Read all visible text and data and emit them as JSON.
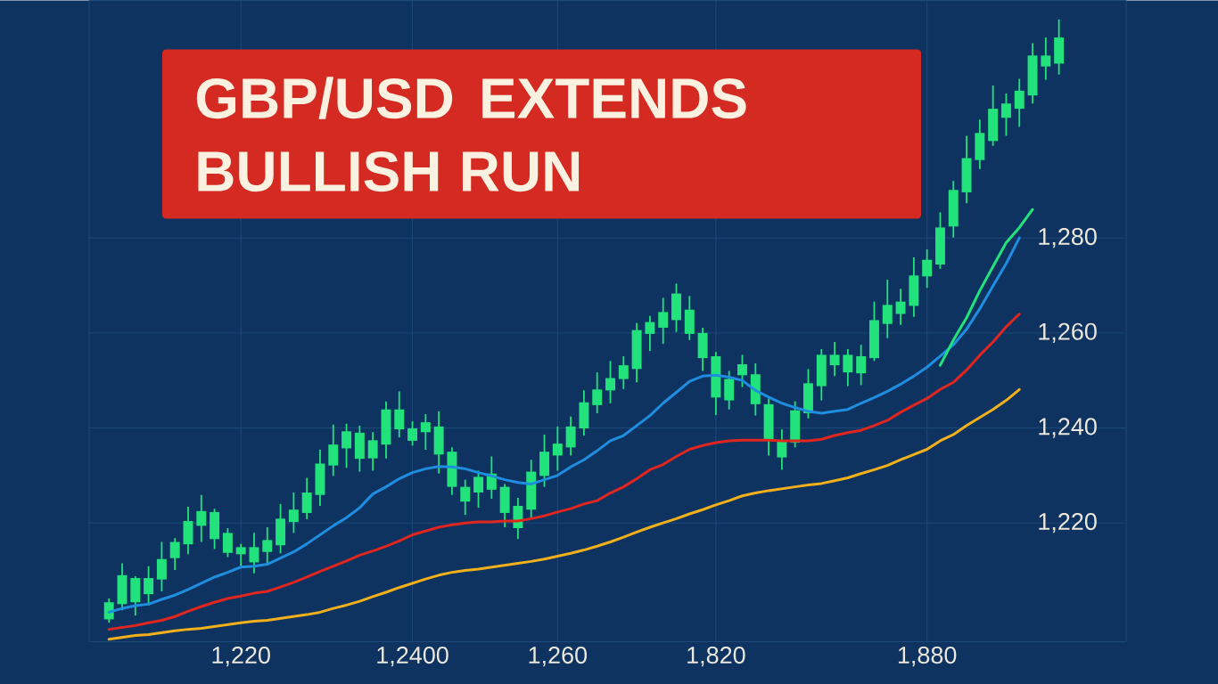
{
  "chart_data": {
    "type": "candlestick",
    "title": "GBP/USD EXTENDS BULLISH RUN",
    "categories": [
      null,
      null,
      null,
      null,
      null,
      null,
      null,
      null,
      null,
      null,
      "1,220",
      null,
      null,
      null,
      null,
      null,
      null,
      null,
      null,
      null,
      null,
      null,
      null,
      "1,2400",
      null,
      null,
      null,
      null,
      null,
      null,
      null,
      null,
      null,
      null,
      "1,260",
      null,
      null,
      null,
      null,
      null,
      null,
      null,
      null,
      null,
      null,
      null,
      "1,820",
      null,
      null,
      null,
      null,
      null,
      null,
      null,
      null,
      null,
      null,
      null,
      null,
      null,
      null,
      null,
      "1,880",
      null,
      null,
      null,
      null,
      null,
      null,
      null,
      null,
      null,
      null
    ],
    "color": "#22e27c",
    "ohlc": [
      [
        1199.7,
        1204.1,
        1199.0,
        1203.3
      ],
      [
        1202.9,
        1211.5,
        1201.6,
        1209.0
      ],
      [
        1203.3,
        1208.8,
        1200.5,
        1208.4
      ],
      [
        1205.0,
        1210.9,
        1202.6,
        1208.4
      ],
      [
        1208.1,
        1216.0,
        1205.6,
        1212.4
      ],
      [
        1212.6,
        1216.8,
        1210.1,
        1216.0
      ],
      [
        1215.5,
        1223.4,
        1213.4,
        1220.4
      ],
      [
        1219.4,
        1225.9,
        1216.0,
        1222.5
      ],
      [
        1216.6,
        1223.0,
        1214.5,
        1222.3
      ],
      [
        1213.7,
        1218.9,
        1212.8,
        1217.9
      ],
      [
        1213.4,
        1215.6,
        1210.9,
        1214.9
      ],
      [
        1211.7,
        1217.9,
        1209.4,
        1214.9
      ],
      [
        1213.9,
        1219.1,
        1211.5,
        1216.4
      ],
      [
        1215.3,
        1224.0,
        1213.6,
        1220.9
      ],
      [
        1220.2,
        1226.4,
        1217.9,
        1222.8
      ],
      [
        1222.1,
        1229.5,
        1220.8,
        1226.4
      ],
      [
        1225.9,
        1235.4,
        1223.6,
        1232.5
      ],
      [
        1232.1,
        1240.7,
        1229.9,
        1236.5
      ],
      [
        1235.7,
        1240.9,
        1231.6,
        1239.3
      ],
      [
        1233.5,
        1240.5,
        1230.8,
        1239.0
      ],
      [
        1233.6,
        1239.1,
        1231.0,
        1237.4
      ],
      [
        1236.5,
        1245.6,
        1233.6,
        1243.9
      ],
      [
        1239.7,
        1247.7,
        1238.0,
        1243.9
      ],
      [
        1237.3,
        1241.4,
        1236.3,
        1239.9
      ],
      [
        1239.1,
        1242.9,
        1235.4,
        1241.2
      ],
      [
        1234.4,
        1243.5,
        1230.4,
        1240.3
      ],
      [
        1227.6,
        1235.9,
        1225.9,
        1235.0
      ],
      [
        1224.5,
        1229.1,
        1221.7,
        1227.6
      ],
      [
        1226.4,
        1231.0,
        1223.2,
        1229.7
      ],
      [
        1227.0,
        1234.0,
        1225.1,
        1230.4
      ],
      [
        1222.1,
        1228.2,
        1219.1,
        1227.6
      ],
      [
        1218.9,
        1225.3,
        1216.6,
        1223.6
      ],
      [
        1222.8,
        1233.3,
        1220.8,
        1230.8
      ],
      [
        1229.9,
        1238.6,
        1227.6,
        1235.0
      ],
      [
        1234.2,
        1240.3,
        1231.0,
        1236.7
      ],
      [
        1235.9,
        1242.4,
        1234.2,
        1240.3
      ],
      [
        1239.9,
        1247.9,
        1238.4,
        1245.4
      ],
      [
        1244.8,
        1251.7,
        1243.1,
        1248.1
      ],
      [
        1247.9,
        1254.1,
        1245.2,
        1250.5
      ],
      [
        1250.3,
        1255.1,
        1248.2,
        1253.2
      ],
      [
        1252.4,
        1262.1,
        1249.6,
        1260.6
      ],
      [
        1259.8,
        1263.6,
        1256.2,
        1262.3
      ],
      [
        1261.1,
        1267.4,
        1257.7,
        1264.4
      ],
      [
        1262.7,
        1270.4,
        1260.2,
        1268.3
      ],
      [
        1259.8,
        1267.8,
        1258.5,
        1264.9
      ],
      [
        1254.7,
        1261.1,
        1252.0,
        1260.0
      ],
      [
        1246.4,
        1256.0,
        1242.7,
        1255.1
      ],
      [
        1245.8,
        1252.0,
        1243.9,
        1250.3
      ],
      [
        1251.1,
        1255.4,
        1248.6,
        1253.4
      ],
      [
        1245.0,
        1253.6,
        1242.6,
        1251.3
      ],
      [
        1237.3,
        1246.2,
        1234.2,
        1245.0
      ],
      [
        1233.8,
        1239.7,
        1231.2,
        1237.4
      ],
      [
        1236.9,
        1245.6,
        1235.9,
        1243.7
      ],
      [
        1243.1,
        1252.4,
        1242.0,
        1249.4
      ],
      [
        1248.8,
        1256.6,
        1245.8,
        1255.4
      ],
      [
        1253.2,
        1258.1,
        1250.9,
        1255.4
      ],
      [
        1251.7,
        1256.6,
        1248.8,
        1255.4
      ],
      [
        1251.5,
        1257.5,
        1249.0,
        1255.1
      ],
      [
        1254.7,
        1266.6,
        1254.1,
        1262.7
      ],
      [
        1261.9,
        1271.2,
        1258.9,
        1265.9
      ],
      [
        1264.0,
        1269.3,
        1261.7,
        1266.6
      ],
      [
        1265.7,
        1275.9,
        1263.4,
        1272.1
      ],
      [
        1271.9,
        1277.6,
        1269.5,
        1275.4
      ],
      [
        1274.4,
        1285.4,
        1273.5,
        1282.2
      ],
      [
        1282.4,
        1292.0,
        1280.1,
        1290.1
      ],
      [
        1289.6,
        1301.5,
        1287.3,
        1296.8
      ],
      [
        1296.4,
        1304.9,
        1294.5,
        1302.1
      ],
      [
        1300.4,
        1312.1,
        1299.4,
        1307.2
      ],
      [
        1305.3,
        1310.4,
        1301.5,
        1308.3
      ],
      [
        1307.2,
        1313.5,
        1303.4,
        1311.0
      ],
      [
        1310.0,
        1321.0,
        1308.3,
        1318.4
      ],
      [
        1316.1,
        1322.2,
        1313.3,
        1318.4
      ],
      [
        1316.7,
        1326.0,
        1314.4,
        1322.2
      ]
    ],
    "series": [
      {
        "type": "line",
        "color": "#f2b01a",
        "values": [
          1195.5,
          1195.9,
          1196.3,
          1196.5,
          1196.9,
          1197.3,
          1197.6,
          1197.8,
          1198.2,
          1198.6,
          1199.0,
          1199.3,
          1199.5,
          1199.9,
          1200.3,
          1200.7,
          1201.2,
          1202.0,
          1202.7,
          1203.5,
          1204.5,
          1205.4,
          1206.4,
          1207.3,
          1208.2,
          1209.0,
          1209.6,
          1210.0,
          1210.3,
          1210.7,
          1211.1,
          1211.5,
          1211.9,
          1212.4,
          1213.0,
          1213.6,
          1214.3,
          1215.1,
          1216.0,
          1217.0,
          1218.1,
          1219.1,
          1220.0,
          1220.9,
          1221.9,
          1222.8,
          1223.8,
          1224.7,
          1225.7,
          1226.3,
          1226.8,
          1227.2,
          1227.6,
          1228.0,
          1228.3,
          1228.9,
          1229.5,
          1230.4,
          1231.2,
          1232.1,
          1233.3,
          1234.4,
          1235.5,
          1237.3,
          1238.6,
          1240.5,
          1242.2,
          1243.9,
          1245.8,
          1248.1,
          null,
          null,
          null
        ]
      },
      {
        "type": "line",
        "color": "#e0261e",
        "values": [
          1197.6,
          1198.0,
          1198.4,
          1199.0,
          1199.5,
          1200.3,
          1201.4,
          1202.4,
          1203.3,
          1204.1,
          1204.6,
          1205.2,
          1205.6,
          1206.5,
          1207.5,
          1208.6,
          1209.8,
          1210.9,
          1212.0,
          1213.2,
          1214.1,
          1215.1,
          1216.2,
          1217.5,
          1218.3,
          1219.1,
          1219.6,
          1220.0,
          1220.2,
          1220.2,
          1220.4,
          1220.4,
          1220.9,
          1221.5,
          1222.3,
          1223.0,
          1224.0,
          1224.7,
          1226.3,
          1227.6,
          1229.3,
          1231.2,
          1232.3,
          1234.0,
          1235.5,
          1236.3,
          1236.9,
          1237.3,
          1237.4,
          1237.4,
          1237.4,
          1237.3,
          1237.3,
          1237.3,
          1237.6,
          1238.4,
          1239.0,
          1239.5,
          1240.5,
          1241.6,
          1243.3,
          1244.8,
          1246.2,
          1248.1,
          1249.6,
          1252.2,
          1255.3,
          1258.1,
          1261.3,
          1264.0,
          null,
          null,
          null
        ]
      },
      {
        "type": "line",
        "color": "#1f8ee0",
        "values": [
          1201.2,
          1202.0,
          1202.6,
          1202.9,
          1203.9,
          1204.8,
          1206.0,
          1207.3,
          1208.6,
          1209.6,
          1210.7,
          1210.9,
          1211.3,
          1212.6,
          1213.9,
          1215.6,
          1217.5,
          1219.4,
          1221.1,
          1223.2,
          1226.1,
          1227.6,
          1229.3,
          1230.6,
          1231.4,
          1231.9,
          1231.8,
          1231.4,
          1230.6,
          1229.9,
          1229.1,
          1228.5,
          1228.2,
          1229.1,
          1230.0,
          1231.8,
          1233.3,
          1235.2,
          1237.3,
          1238.4,
          1240.5,
          1242.6,
          1245.2,
          1247.5,
          1249.8,
          1250.9,
          1251.1,
          1250.7,
          1250.0,
          1247.9,
          1246.5,
          1245.2,
          1244.3,
          1243.5,
          1243.1,
          1243.5,
          1243.9,
          1245.2,
          1246.4,
          1247.7,
          1249.2,
          1250.9,
          1252.8,
          1255.1,
          1257.5,
          1260.8,
          1265.1,
          1269.9,
          1274.6,
          1280.0,
          null,
          null,
          null
        ]
      },
      {
        "type": "line",
        "color": "#22e27c",
        "values": [
          null,
          null,
          null,
          null,
          null,
          null,
          null,
          null,
          null,
          null,
          null,
          null,
          null,
          null,
          null,
          null,
          null,
          null,
          null,
          null,
          null,
          null,
          null,
          null,
          null,
          null,
          null,
          null,
          null,
          null,
          null,
          null,
          null,
          null,
          null,
          null,
          null,
          null,
          null,
          null,
          null,
          null,
          null,
          null,
          null,
          null,
          null,
          null,
          null,
          null,
          null,
          null,
          null,
          null,
          null,
          null,
          null,
          null,
          null,
          null,
          null,
          null,
          null,
          1253.2,
          1258.5,
          1263.2,
          1268.9,
          1274.0,
          1279.0,
          1282.2,
          1286.0,
          null,
          null
        ]
      }
    ],
    "ylim": [
      1195,
      1330
    ],
    "yticks": [
      {
        "value": 1220,
        "label": "1,220"
      },
      {
        "value": 1240,
        "label": "1,240"
      },
      {
        "value": 1260,
        "label": "1,260"
      },
      {
        "value": 1280,
        "label": "1,280"
      }
    ],
    "grid": true
  }
}
